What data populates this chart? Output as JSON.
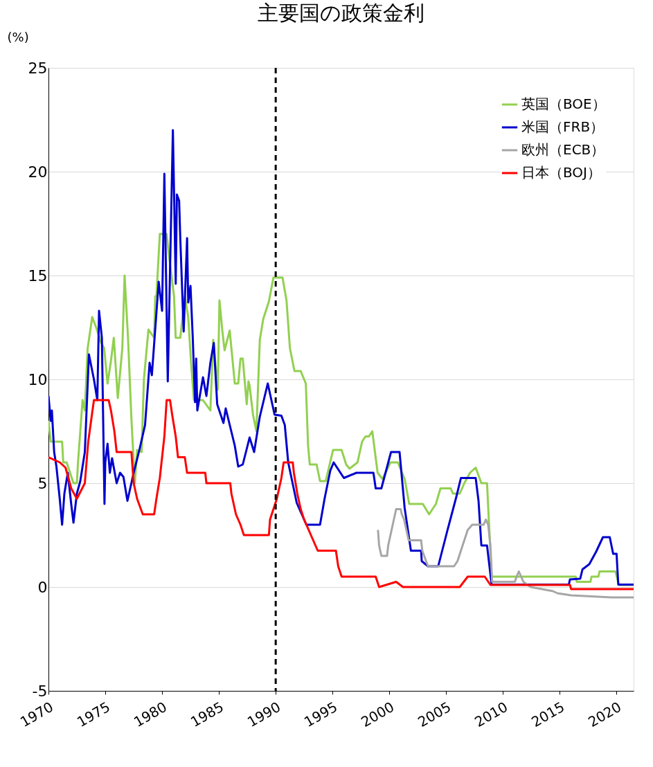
{
  "chart_data": {
    "type": "line",
    "title": "主要国の政策金利",
    "ylabel": "(%)",
    "xlim": [
      1970,
      2021.5
    ],
    "xticks": [
      1970,
      1975,
      1980,
      1985,
      1990,
      1995,
      2000,
      2005,
      2010,
      2015,
      2020
    ],
    "ylim": [
      -5,
      25
    ],
    "yticks": [
      -5,
      0,
      5,
      10,
      15,
      20,
      25
    ],
    "grid": "y",
    "legend": "top right",
    "line_style": "solid",
    "marker": "none",
    "ref_lines": [
      {
        "axis": "x",
        "value": 1990,
        "label": null,
        "color": "#000000",
        "line_style": "dashed"
      }
    ],
    "series": [
      {
        "name": "英国（BOE）",
        "color": "#92d050",
        "x": [
          1970,
          1970.2,
          1971.2,
          1971.3,
          1971.6,
          1972.2,
          1972.5,
          1972.6,
          1972.8,
          1973,
          1973.2,
          1973.45,
          1973.85,
          1974.2,
          1974.6,
          1974.9,
          1975.2,
          1975.5,
          1975.75,
          1976.1,
          1976.5,
          1976.7,
          1977,
          1977.3,
          1977.6,
          1977.8,
          1978.2,
          1978.4,
          1978.8,
          1979.3,
          1979.4,
          1979.5,
          1979.8,
          1980.4,
          1980.6,
          1981.05,
          1981.2,
          1981.6,
          1982,
          1982.3,
          1982.55,
          1982.8,
          1983.6,
          1984.25,
          1984.5,
          1984.9,
          1985.05,
          1985.3,
          1985.5,
          1985.95,
          1986.4,
          1986.7,
          1986.9,
          1987.1,
          1987.45,
          1987.6,
          1987.7,
          1988,
          1988.3,
          1988.6,
          1988.9,
          1989.4,
          1989.8,
          1990.6,
          1990.95,
          1991.25,
          1991.65,
          1992.2,
          1992.65,
          1992.85,
          1993,
          1993.6,
          1993.9,
          1994.4,
          1995.05,
          1995.8,
          1996.2,
          1996.5,
          1997.2,
          1997.6,
          1997.9,
          1998.2,
          1998.5,
          1998.97,
          1999.4,
          2000.1,
          2000.75,
          2001.35,
          2001.75,
          2002.95,
          2003.5,
          2004.1,
          2004.5,
          2005.4,
          2005.6,
          2006.2,
          2006.6,
          2007.1,
          2007.6,
          2008.1,
          2008.6,
          2009,
          2016.4,
          2016.5,
          2017.7,
          2017.8,
          2018.4,
          2018.5,
          2019.9,
          2020.2,
          2021.5
        ],
        "values": [
          8,
          7,
          7,
          6,
          6,
          5,
          5,
          6,
          7.5,
          9,
          8.5,
          11.5,
          13,
          12.5,
          11.8,
          11.5,
          9.8,
          10.9,
          12,
          9.1,
          11.5,
          15,
          12,
          8.1,
          5,
          6.6,
          6.5,
          10,
          12.4,
          12,
          14,
          14,
          17,
          17,
          16,
          14,
          12,
          12,
          14,
          13,
          10.8,
          9,
          9,
          8.5,
          11.9,
          9.5,
          13.8,
          12.35,
          11.4,
          12.35,
          9.8,
          9.8,
          11,
          11,
          8.8,
          9.9,
          9.7,
          8.3,
          7.5,
          11.9,
          12.9,
          13.75,
          14.9,
          14.9,
          13.8,
          11.5,
          10.4,
          10.4,
          9.8,
          6.8,
          5.9,
          5.9,
          5.1,
          5.1,
          6.6,
          6.6,
          5.9,
          5.7,
          6,
          7,
          7.25,
          7.25,
          7.5,
          5.5,
          5.2,
          6,
          6,
          5.2,
          4,
          4,
          3.5,
          4,
          4.75,
          4.75,
          4.5,
          4.5,
          5,
          5.5,
          5.75,
          5,
          5,
          0.5,
          0.5,
          0.25,
          0.25,
          0.5,
          0.5,
          0.75,
          0.75,
          0.1,
          0.1
        ]
      },
      {
        "name": "米国（FRB）",
        "color": "#0000cc",
        "x": [
          1970,
          1970.2,
          1970.3,
          1970.5,
          1970.7,
          1971,
          1971.2,
          1971.4,
          1971.7,
          1972,
          1972.2,
          1972.5,
          1972.8,
          1973.2,
          1973.56,
          1974,
          1974.3,
          1974.45,
          1974.7,
          1974.93,
          1975,
          1975.2,
          1975.4,
          1975.6,
          1976,
          1976.3,
          1976.6,
          1976.95,
          1977.5,
          1978,
          1978.5,
          1978.9,
          1979.1,
          1979.7,
          1980,
          1980.2,
          1980.5,
          1980.95,
          1981.2,
          1981.3,
          1981.5,
          1981.6,
          1981.9,
          1982.2,
          1982.3,
          1982.5,
          1982.7,
          1982.9,
          1983,
          1983.1,
          1983.6,
          1983.9,
          1984.25,
          1984.55,
          1984.85,
          1985.4,
          1985.6,
          1986,
          1986.4,
          1986.7,
          1987.1,
          1987.45,
          1987.7,
          1988.1,
          1988.6,
          1989.3,
          1989.9,
          1990.5,
          1990.8,
          1991.1,
          1991.85,
          1992.7,
          1993.9,
          1994.3,
          1994.8,
          1995.1,
          1996,
          1997.1,
          1998.6,
          1998.8,
          1999.3,
          2000.15,
          2000.9,
          2001.35,
          2001.9,
          2002.8,
          2002.85,
          2003.4,
          2004.3,
          2005.1,
          2005.9,
          2006.3,
          2007.6,
          2007.85,
          2008.1,
          2008.6,
          2009,
          2015.8,
          2015.9,
          2016.8,
          2017,
          2017.6,
          2018.2,
          2018.8,
          2019.4,
          2019.7,
          2020,
          2020.15,
          2021.5
        ],
        "values": [
          9.2,
          8,
          8.5,
          6.5,
          5.8,
          4.2,
          3,
          4.5,
          5.5,
          4,
          3.1,
          4.5,
          5.1,
          6.5,
          11.2,
          10,
          9,
          13.3,
          12,
          4,
          6,
          6.9,
          5.5,
          6.2,
          5,
          5.5,
          5.3,
          4.15,
          5.5,
          6.6,
          7.8,
          10.8,
          10.2,
          14.7,
          13.3,
          19.9,
          9.9,
          22,
          14.6,
          18.9,
          18.6,
          16.8,
          12.3,
          16.8,
          13.7,
          14.5,
          12,
          8.9,
          11,
          8.5,
          10.1,
          9.2,
          10.8,
          11.75,
          8.8,
          7.9,
          8.6,
          7.7,
          6.8,
          5.8,
          5.9,
          6.65,
          7.2,
          6.5,
          8.2,
          9.8,
          8.3,
          8.25,
          7.8,
          6,
          4.05,
          3,
          3,
          4.25,
          5.6,
          6,
          5.25,
          5.5,
          5.5,
          4.75,
          4.75,
          6.5,
          6.5,
          3.8,
          1.75,
          1.75,
          1.25,
          1,
          1,
          2.7,
          4.35,
          5.25,
          5.25,
          4.15,
          2,
          2,
          0.12,
          0.12,
          0.37,
          0.4,
          0.85,
          1.1,
          1.7,
          2.4,
          2.4,
          1.6,
          1.6,
          0.12,
          0.12
        ]
      },
      {
        "name": "欧州（ECB）",
        "color": "#a6a6a6",
        "x": [
          1999,
          1999.1,
          1999.3,
          1999.8,
          1999.9,
          2000.1,
          2000.4,
          2000.6,
          2001,
          2001.1,
          2001.3,
          2001.7,
          2002.8,
          2002.9,
          2003.4,
          2005.7,
          2006,
          2006.3,
          2006.6,
          2006.9,
          2007.3,
          2008.3,
          2008.5,
          2008.7,
          2008.9,
          2009.05,
          2011.05,
          2011.2,
          2011.4,
          2011.6,
          2011.8,
          2012.45,
          2014.4,
          2014.8,
          2016,
          2019.55,
          2021.5
        ],
        "values": [
          2.75,
          2,
          1.5,
          1.5,
          2,
          2.5,
          3.25,
          3.75,
          3.75,
          3.5,
          3.25,
          2.25,
          2.25,
          1.75,
          1,
          1,
          1.25,
          1.75,
          2.25,
          2.75,
          3,
          3,
          3.25,
          3,
          2,
          0.25,
          0.25,
          0.5,
          0.75,
          0.5,
          0.25,
          0,
          -0.2,
          -0.3,
          -0.4,
          -0.5,
          -0.5
        ]
      },
      {
        "name": "日本（BOJ）",
        "color": "#ff0000",
        "x": [
          1970,
          1971,
          1971.5,
          1972,
          1972.5,
          1973.2,
          1973.5,
          1974,
          1975.3,
          1975.5,
          1975.8,
          1976,
          1977.3,
          1977.5,
          1977.8,
          1978.3,
          1979.3,
          1979.5,
          1979.8,
          1980.2,
          1980.4,
          1980.7,
          1980.9,
          1981.2,
          1981.4,
          1982,
          1982.2,
          1983.8,
          1983.9,
          1986,
          1986.1,
          1986.3,
          1986.5,
          1986.9,
          1987.2,
          1989.4,
          1989.5,
          1989.8,
          1990.1,
          1990.5,
          1990.7,
          1991.5,
          1991.6,
          1991.9,
          1992.2,
          1992.5,
          1993.1,
          1993.7,
          1995.3,
          1995.5,
          1995.8,
          1998.8,
          1999.1,
          2000.6,
          2001.2,
          2006.2,
          2006.9,
          2008.4,
          2008.9,
          2015.9,
          2016,
          2021.5
        ],
        "values": [
          6.25,
          6,
          5.75,
          4.75,
          4.25,
          5,
          7,
          9,
          9,
          8.5,
          7.5,
          6.5,
          6.5,
          5,
          4.25,
          3.5,
          3.5,
          4.25,
          5.25,
          7.25,
          9,
          9,
          8.25,
          7.25,
          6.25,
          6.25,
          5.5,
          5.5,
          5,
          5,
          4.5,
          4,
          3.5,
          3,
          2.5,
          2.5,
          3.25,
          3.75,
          4.25,
          5.25,
          6,
          6,
          5.5,
          4.5,
          3.75,
          3.25,
          2.5,
          1.75,
          1.75,
          1,
          0.5,
          0.5,
          0,
          0.25,
          0,
          0,
          0.5,
          0.5,
          0.1,
          0.1,
          -0.1,
          -0.1
        ]
      }
    ]
  }
}
